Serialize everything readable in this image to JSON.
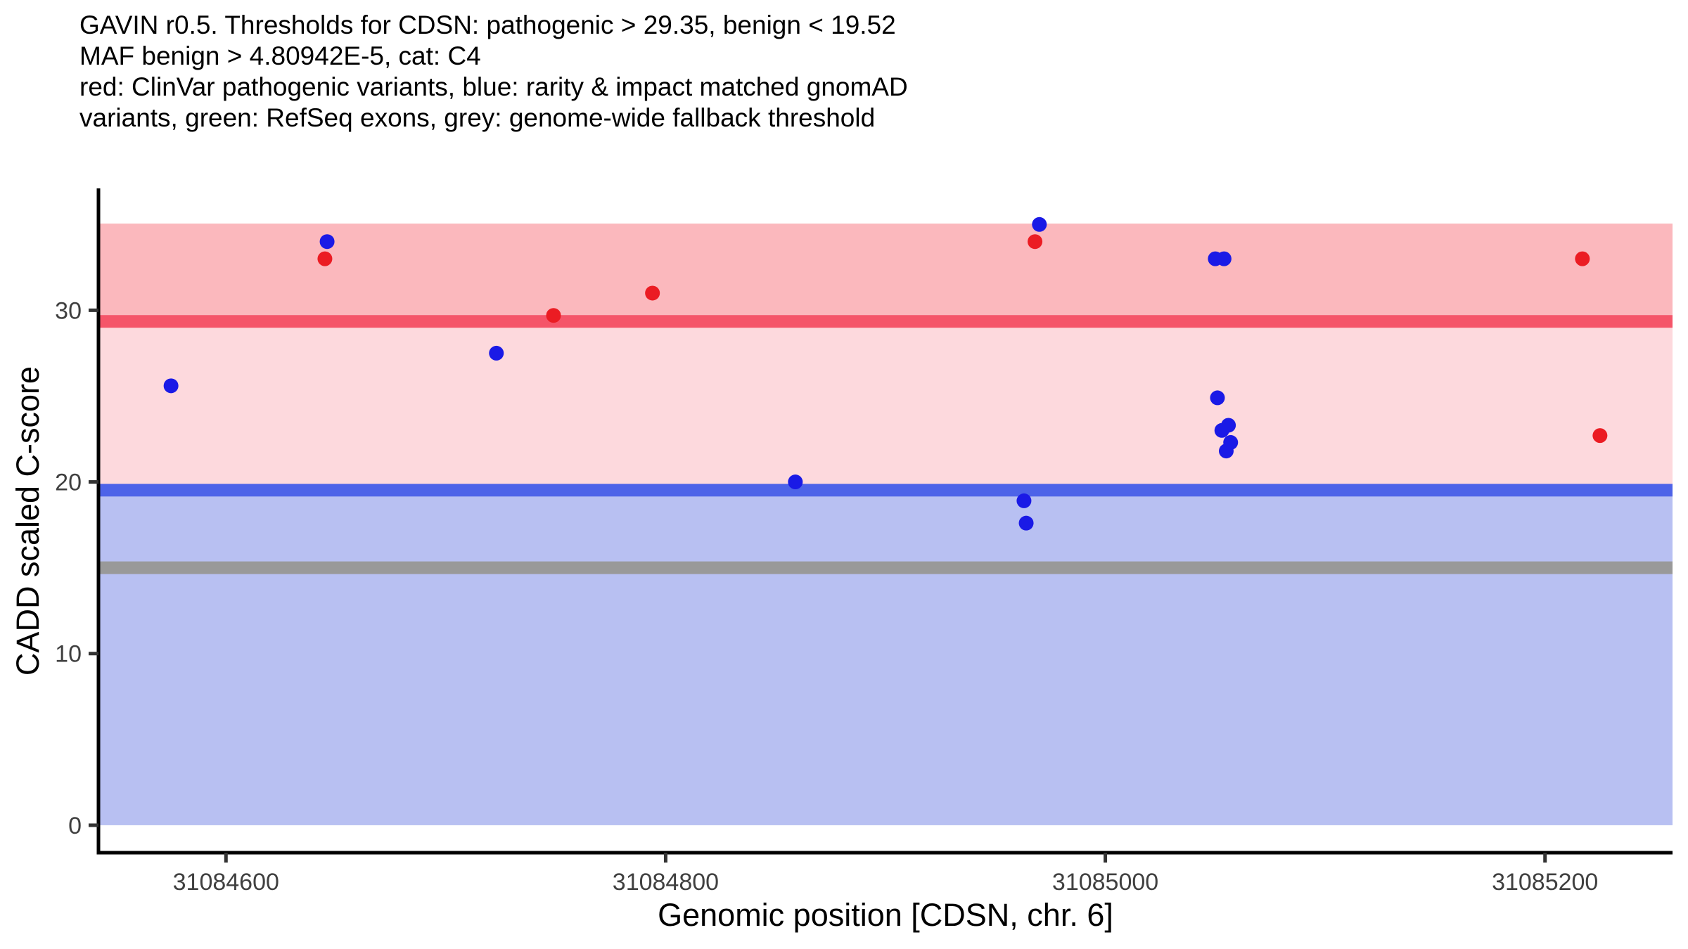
{
  "chart_data": {
    "type": "scatter",
    "title_lines": [
      "GAVIN r0.5. Thresholds for CDSN: pathogenic > 29.35, benign < 19.52",
      "MAF benign > 4.80942E-5, cat: C4",
      "red: ClinVar pathogenic variants, blue: rarity & impact matched gnomAD",
      "variants, green: RefSeq exons, grey: genome-wide fallback threshold"
    ],
    "xlabel": "Genomic position [CDSN, chr. 6]",
    "ylabel": "CADD scaled C-score",
    "xlim": [
      31084542,
      31085258
    ],
    "ylim": [
      -1.6,
      37.1
    ],
    "x_ticks": [
      31084600,
      31084800,
      31085000,
      31085200
    ],
    "y_ticks": [
      0,
      10,
      20,
      30
    ],
    "grid": false,
    "legend": "none",
    "bands": [
      {
        "name": "pathogenic-zone",
        "from": 29.35,
        "to": 35.05,
        "color": "#FBB8BD"
      },
      {
        "name": "uncertain-zone",
        "from": 19.52,
        "to": 29.35,
        "color": "#FDD9DD"
      },
      {
        "name": "benign-zone",
        "from": 0,
        "to": 19.52,
        "color": "#B8C0F2"
      }
    ],
    "thresholds": [
      {
        "name": "pathogenic-threshold",
        "value": 29.35,
        "color": "#F55569"
      },
      {
        "name": "benign-threshold",
        "value": 19.52,
        "color": "#4D63E8"
      },
      {
        "name": "genome-wide-fallback-threshold",
        "value": 15,
        "color": "#999999"
      }
    ],
    "series": [
      {
        "name": "clinvar-pathogenic-variants",
        "label": "ClinVar pathogenic variants",
        "color": "#EB1C23",
        "points": [
          [
            31084645,
            33.0
          ],
          [
            31084749,
            29.7
          ],
          [
            31084794,
            31.0
          ],
          [
            31084968,
            34.0
          ],
          [
            31085217,
            33.0
          ],
          [
            31085225,
            22.7
          ]
        ]
      },
      {
        "name": "gnomad-matched-variants",
        "label": "rarity & impact matched gnomAD variants",
        "color": "#1A1AE6",
        "points": [
          [
            31084575,
            25.6
          ],
          [
            31084646,
            34.0
          ],
          [
            31084723,
            27.5
          ],
          [
            31084859,
            20.0
          ],
          [
            31084963,
            18.9
          ],
          [
            31084964,
            17.6
          ],
          [
            31084970,
            35.0
          ],
          [
            31085050,
            33.0
          ],
          [
            31085054,
            33.0
          ],
          [
            31085051,
            24.9
          ],
          [
            31085056,
            23.3
          ],
          [
            31085053,
            23.0
          ],
          [
            31085057,
            22.3
          ],
          [
            31085055,
            21.8
          ]
        ]
      }
    ],
    "axis_text_color": "#404040",
    "axis_line_color": "#000000"
  }
}
